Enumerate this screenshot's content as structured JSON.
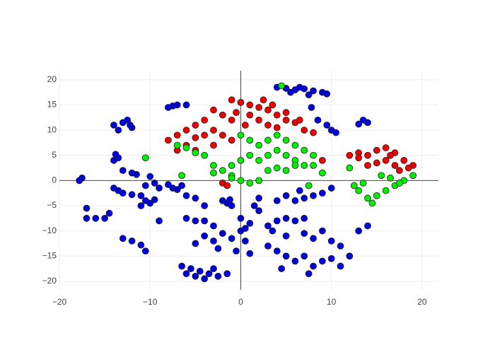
{
  "chart_data": {
    "type": "scatter",
    "xlim": [
      -20,
      21.8
    ],
    "ylim": [
      -21.7,
      21.8
    ],
    "xticks": [
      {
        "value": -20,
        "label": "−20"
      },
      {
        "value": -10,
        "label": "−10"
      },
      0,
      10,
      20
    ],
    "yticks": [
      {
        "value": -20,
        "label": "−20"
      },
      {
        "value": -15,
        "label": "−15"
      },
      {
        "value": -10,
        "label": "−10"
      },
      {
        "value": -5,
        "label": "−5"
      },
      0,
      5,
      10,
      15,
      20
    ],
    "grid": true,
    "series": [
      {
        "color": "#0000dd",
        "x": [
          4,
          5,
          6,
          7,
          8,
          9,
          5.5,
          7.5,
          9.5,
          6.5,
          7.8,
          8.5,
          9.5,
          10,
          10.5,
          13.5,
          14,
          13,
          -14,
          -13,
          -12.5,
          -12,
          -13.5,
          -12.2,
          -8,
          -7,
          -6,
          -7.5,
          -13.5,
          -13.8,
          -14,
          -17.5,
          -17.8,
          -13,
          -12,
          -11.5,
          -10,
          -9.5,
          -8,
          -9,
          -10.5,
          -7.5,
          -7,
          -6.5,
          -14,
          -13.5,
          -13,
          -12,
          -11,
          -10.5,
          -10,
          -9.5,
          -11,
          -17,
          -16,
          -15,
          -14.5,
          -17,
          -13,
          -12,
          -11,
          -10.5,
          -9,
          -6,
          -5,
          -4,
          -3,
          -6,
          -5,
          -4,
          -2,
          -1.5,
          -1.2,
          -1,
          -6.5,
          -5.5,
          -4.5,
          -3.5,
          -2.5,
          -4,
          -5,
          -6,
          -3,
          -1.5,
          -4,
          -3,
          -2,
          -1,
          0,
          0.5,
          -0.5,
          1,
          -2.5,
          -5,
          0,
          1,
          0.5,
          2,
          1.5,
          2,
          4,
          5,
          6,
          7,
          8,
          9,
          10,
          6.5,
          4,
          5,
          6,
          7,
          3,
          3.5,
          5,
          7,
          8,
          9,
          10,
          11,
          3,
          4,
          5,
          6,
          7,
          8,
          9,
          10,
          11,
          12,
          7.5,
          4.5,
          13,
          14
        ],
        "y": [
          18.5,
          18.3,
          18,
          18.2,
          17.8,
          17.5,
          17.5,
          17,
          17.2,
          18.5,
          14.5,
          12,
          11,
          10,
          9.5,
          12,
          11.5,
          11.2,
          11,
          11.5,
          12,
          10.5,
          10,
          11,
          14.5,
          15,
          15,
          14.8,
          4.5,
          5.2,
          4,
          0.5,
          0,
          2,
          1.5,
          1.2,
          0.8,
          -0.5,
          -0.8,
          -1.5,
          -1,
          -1.5,
          -1.8,
          -1,
          -1.5,
          -2,
          -2.5,
          -2.8,
          -3,
          -4,
          -4.5,
          -3.8,
          -5,
          -7.5,
          -7.5,
          -7.5,
          -6.5,
          -5.5,
          -11.5,
          -12,
          -12.8,
          -14,
          -8,
          -7.5,
          -8,
          -8,
          -9,
          -3,
          -3.5,
          -5,
          -4,
          -4.5,
          -3.8,
          -5,
          -17,
          -17.5,
          -18,
          -18.5,
          -19,
          -19.5,
          -19,
          -18.5,
          -17.5,
          -18.5,
          -11,
          -12,
          -10.5,
          -11.5,
          -10,
          -12,
          -14,
          -14.5,
          -13.5,
          -12.5,
          -7.5,
          -8.5,
          -9.5,
          -6,
          -5,
          -3.5,
          -4,
          -3,
          -4,
          -3.5,
          -3,
          -2.5,
          -1.5,
          -2,
          -8,
          -7.5,
          -8,
          -7.5,
          -9,
          -10,
          -11,
          -10.5,
          -11.5,
          -10,
          -12,
          -13,
          -13,
          -14,
          -15,
          -16,
          -15,
          -17,
          -16,
          -15.5,
          -17,
          -15,
          -18.5,
          -17.5,
          -10,
          -9
        ]
      },
      {
        "color": "#ee0000",
        "x": [
          -1,
          0,
          1,
          2,
          3,
          4,
          5,
          6,
          7,
          8,
          1,
          2,
          3,
          4,
          0.5,
          -0.5,
          2.5,
          3.5,
          5,
          6.5,
          -2,
          -3,
          -1,
          -4,
          -5,
          -6,
          -7,
          -8,
          -6,
          -5,
          -4,
          -3,
          -2,
          -5,
          -3,
          -1,
          -7,
          -2,
          -1.5,
          9,
          12,
          13,
          14,
          15,
          16,
          17,
          18,
          19,
          18.5,
          17,
          16,
          15,
          14,
          13,
          16.5,
          17.5
        ],
        "y": [
          16,
          15.5,
          15,
          14.5,
          14,
          13,
          12,
          11.5,
          10,
          9.5,
          13,
          12,
          11,
          10.5,
          11,
          13.5,
          16,
          15,
          13.5,
          12,
          13,
          14,
          12,
          12,
          11,
          10,
          9,
          8,
          7,
          8.5,
          9,
          10,
          9,
          6,
          7,
          8,
          6,
          -0.5,
          -1,
          4,
          5,
          5.5,
          5,
          6,
          6.5,
          5.5,
          4,
          3,
          2.5,
          3,
          4,
          3.5,
          3,
          4.5,
          5,
          2
        ]
      },
      {
        "color": "#00ee00",
        "x": [
          0,
          1,
          2,
          3,
          4,
          5,
          6,
          7,
          8,
          1,
          2,
          3,
          4,
          5,
          6,
          7,
          0,
          -1,
          -2,
          -3,
          -4,
          -5,
          -6,
          -7,
          -3,
          -1,
          0,
          1,
          2,
          3,
          4,
          5,
          6,
          8,
          9,
          7.5,
          4.5,
          -10.5,
          -1,
          -6.5,
          12,
          12.5,
          13,
          14,
          15,
          16,
          17,
          18,
          19,
          14.5,
          15.5,
          16.5,
          13.5,
          17.5
        ],
        "y": [
          9,
          8,
          7,
          8,
          9,
          8,
          7,
          6,
          5,
          5,
          4,
          5,
          6,
          5,
          4,
          3,
          4,
          3,
          2,
          3,
          5,
          5.5,
          6.5,
          7,
          1.5,
          1,
          0,
          -0.5,
          0,
          2,
          2.5,
          2,
          3,
          3,
          1.5,
          -1,
          18.8,
          4.5,
          0.5,
          1,
          2.5,
          -1,
          -2,
          -3.5,
          -3,
          -2,
          -1,
          0,
          1,
          -4.5,
          1,
          0.5,
          -0.5,
          -0.5
        ]
      }
    ]
  }
}
